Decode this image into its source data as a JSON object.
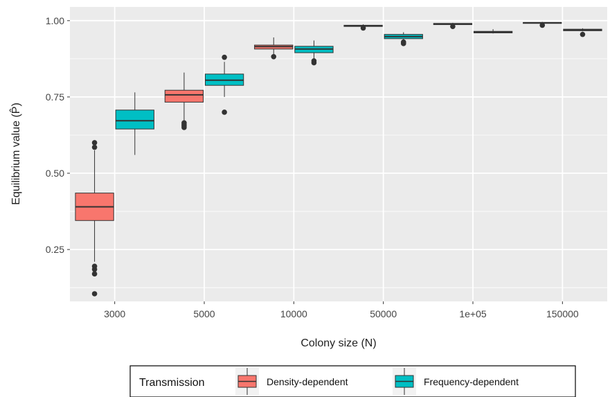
{
  "chart_data": {
    "type": "boxplot",
    "xlabel": "Colony size (N)",
    "ylabel": "Equilibrium value (P̂)",
    "ylim": [
      0.08,
      1.045
    ],
    "yticks": [
      0.25,
      0.5,
      0.75,
      1.0
    ],
    "ytick_labels": [
      "0.25",
      "0.50",
      "0.75",
      "1.00"
    ],
    "categories": [
      "3000",
      "5000",
      "10000",
      "50000",
      "1e+05",
      "150000"
    ],
    "grid": true,
    "legend": {
      "title": "Transmission",
      "position": "bottom"
    },
    "colors": {
      "panel": "#ebebeb",
      "grid": "#ffffff",
      "outline": "#333333"
    },
    "series": [
      {
        "name": "Density-dependent",
        "color": "#f8766d",
        "boxes": [
          {
            "whisker_low": 0.21,
            "q1": 0.345,
            "median": 0.39,
            "q3": 0.435,
            "whisker_high": 0.575,
            "outliers": [
              0.105,
              0.17,
              0.185,
              0.195,
              0.585,
              0.6
            ]
          },
          {
            "whisker_low": 0.67,
            "q1": 0.733,
            "median": 0.757,
            "q3": 0.772,
            "whisker_high": 0.83,
            "outliers": [
              0.65,
              0.655,
              0.66,
              0.665
            ]
          },
          {
            "whisker_low": 0.89,
            "q1": 0.907,
            "median": 0.915,
            "q3": 0.92,
            "whisker_high": 0.945,
            "outliers": [
              0.882
            ]
          },
          {
            "whisker_low": 0.978,
            "q1": 0.981,
            "median": 0.983,
            "q3": 0.985,
            "whisker_high": 0.988,
            "outliers": [
              0.976
            ]
          },
          {
            "whisker_low": 0.984,
            "q1": 0.987,
            "median": 0.989,
            "q3": 0.991,
            "whisker_high": 0.993,
            "outliers": [
              0.981
            ]
          },
          {
            "whisker_low": 0.988,
            "q1": 0.991,
            "median": 0.993,
            "q3": 0.994,
            "whisker_high": 0.996,
            "outliers": [
              0.985
            ]
          }
        ]
      },
      {
        "name": "Frequency-dependent",
        "color": "#00bfc4",
        "boxes": [
          {
            "whisker_low": 0.56,
            "q1": 0.645,
            "median": 0.672,
            "q3": 0.707,
            "whisker_high": 0.765,
            "outliers": []
          },
          {
            "whisker_low": 0.75,
            "q1": 0.788,
            "median": 0.805,
            "q3": 0.825,
            "whisker_high": 0.865,
            "outliers": [
              0.7,
              0.88
            ]
          },
          {
            "whisker_low": 0.875,
            "q1": 0.895,
            "median": 0.907,
            "q3": 0.916,
            "whisker_high": 0.935,
            "outliers": [
              0.862,
              0.868
            ]
          },
          {
            "whisker_low": 0.935,
            "q1": 0.941,
            "median": 0.948,
            "q3": 0.955,
            "whisker_high": 0.962,
            "outliers": [
              0.925,
              0.93
            ]
          },
          {
            "whisker_low": 0.958,
            "q1": 0.96,
            "median": 0.962,
            "q3": 0.965,
            "whisker_high": 0.972,
            "outliers": []
          },
          {
            "whisker_low": 0.965,
            "q1": 0.967,
            "median": 0.969,
            "q3": 0.972,
            "whisker_high": 0.975,
            "outliers": [
              0.955
            ]
          }
        ]
      }
    ]
  }
}
